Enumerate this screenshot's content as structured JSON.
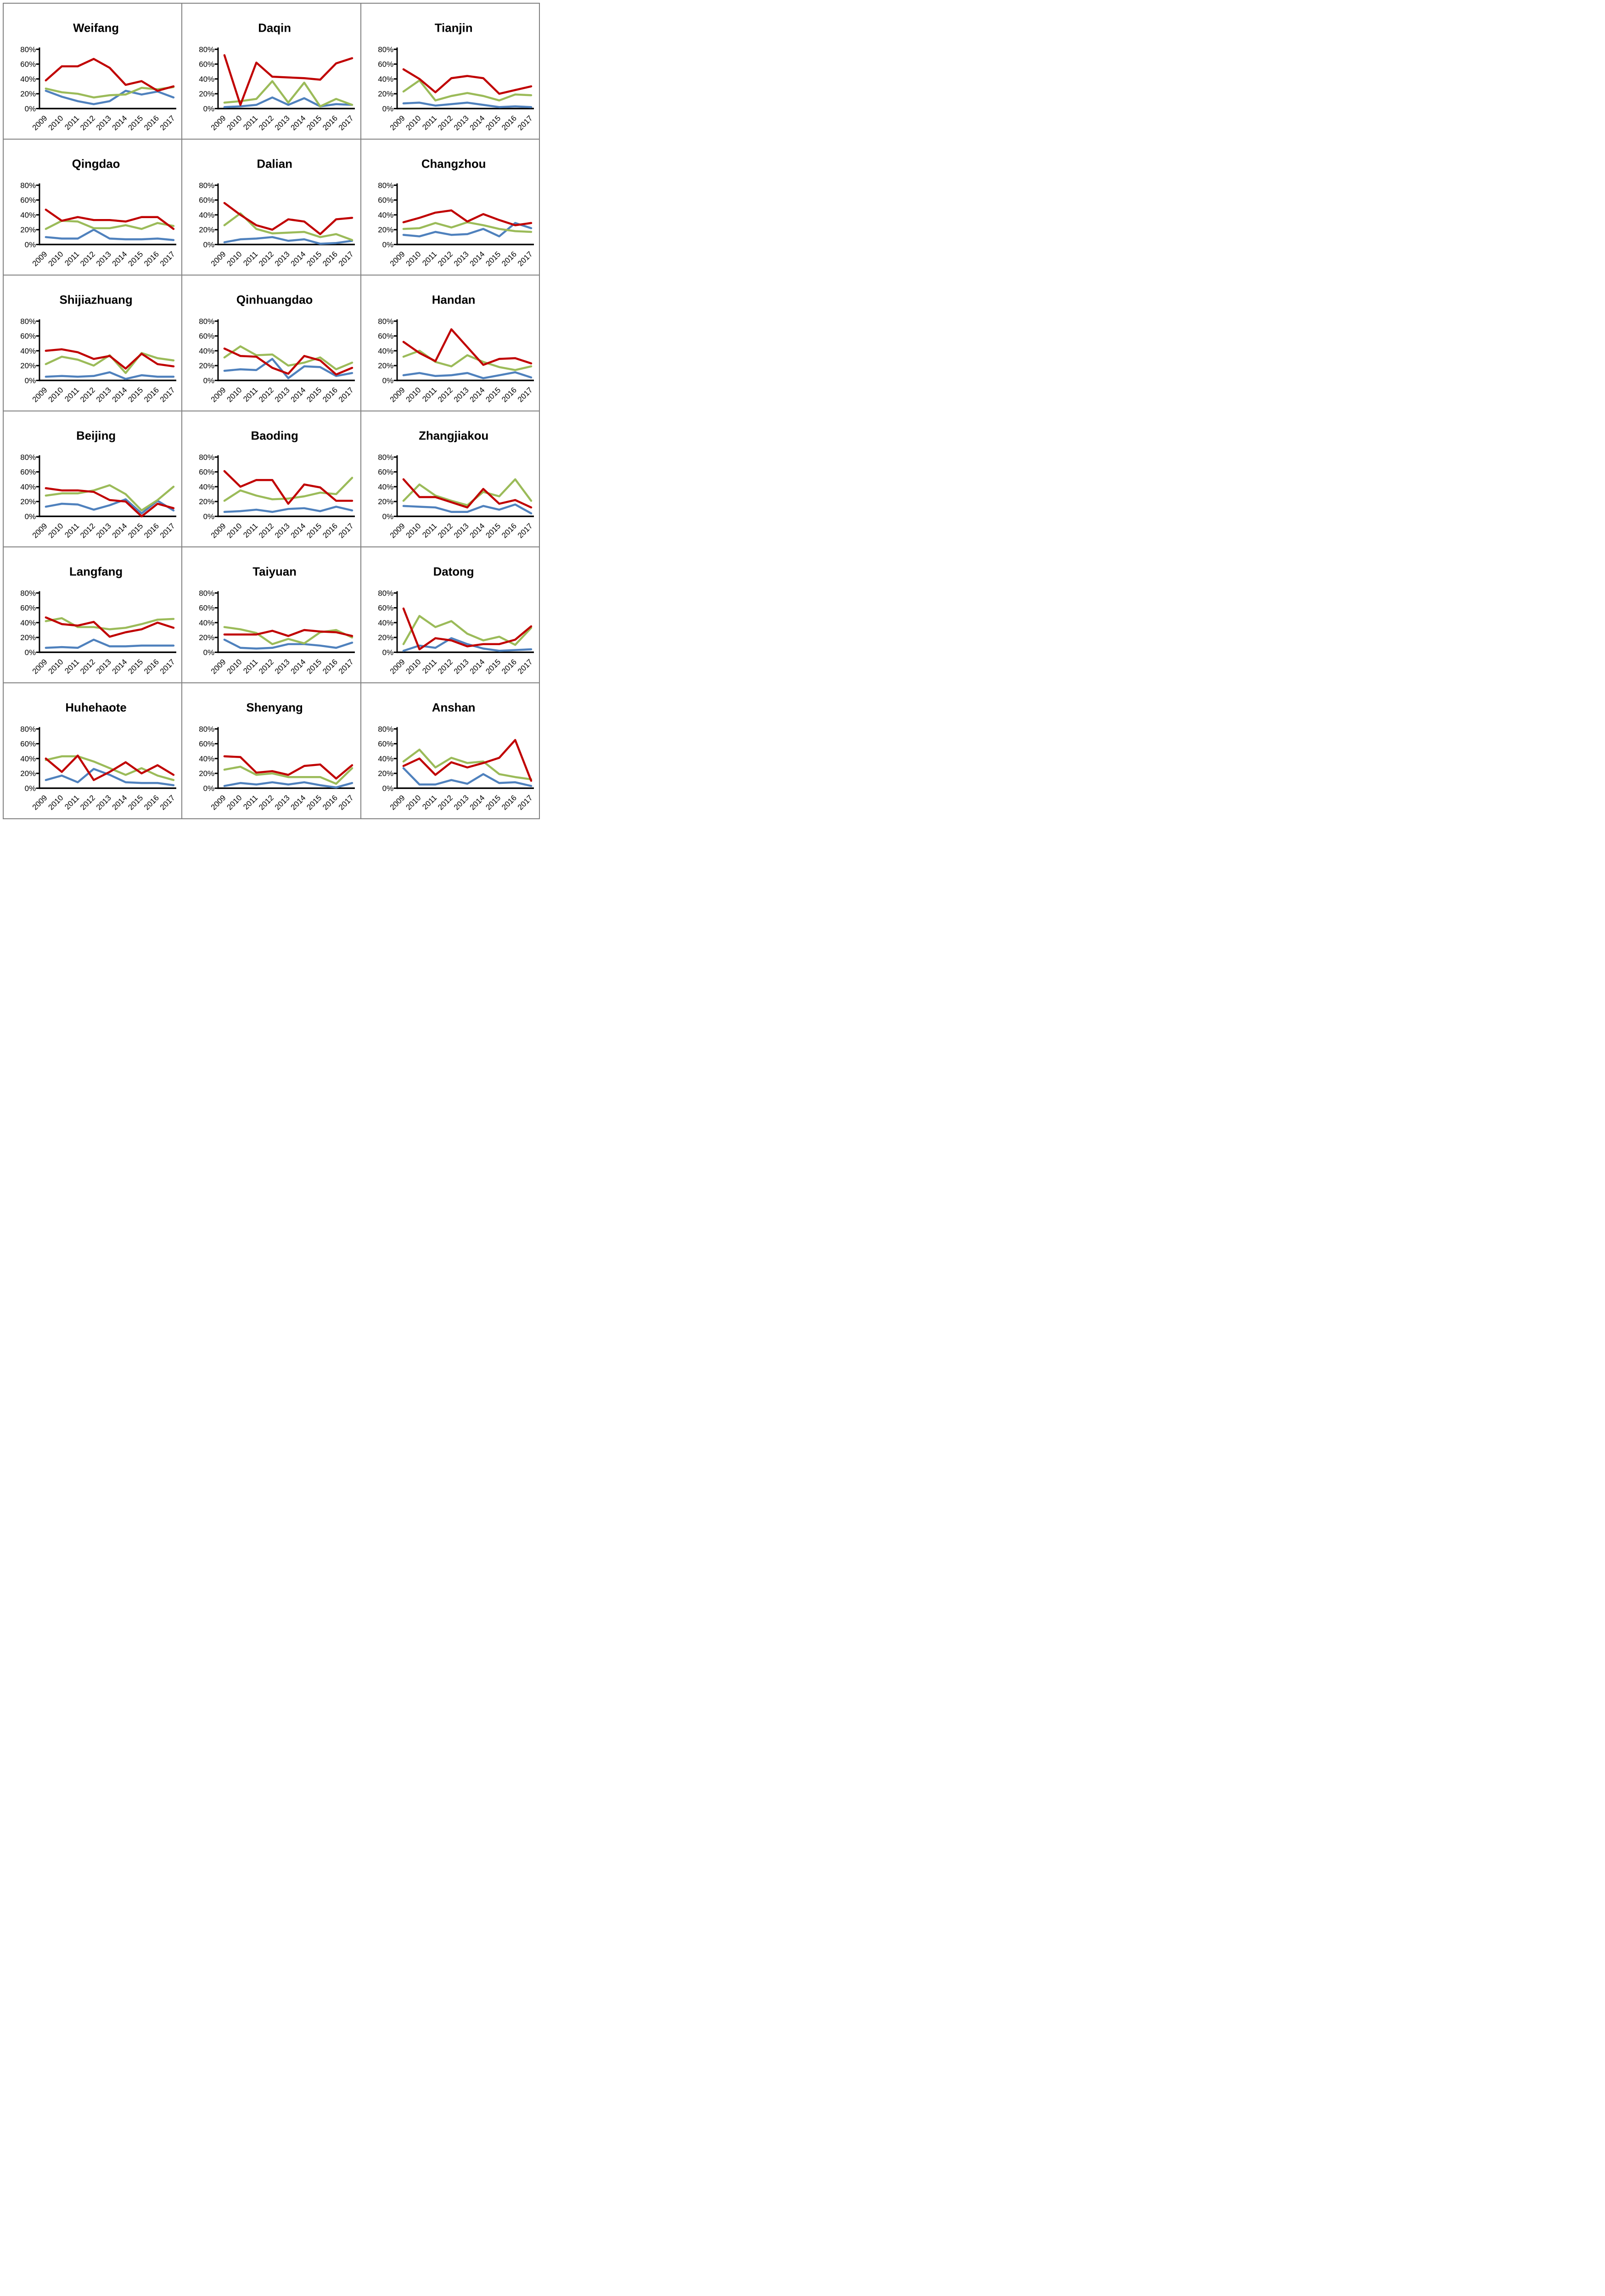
{
  "page": {
    "description": "Grid of 18 small multiple line charts of Chinese cities, share percentages 2009-2017"
  },
  "colors": {
    "red": "#C00000",
    "green": "#9BBB59",
    "blue": "#4F81BD",
    "panel_border": "#808080",
    "axis": "#000000"
  },
  "axis_common": {
    "categories": [
      "2009",
      "2010",
      "2011",
      "2012",
      "2013",
      "2014",
      "2015",
      "2016",
      "2017"
    ],
    "ylim": [
      0,
      80
    ],
    "y_tick_labels": [
      "0%",
      "20%",
      "40%",
      "60%",
      "80%"
    ],
    "grid": "off",
    "legend": "none"
  },
  "chart_data": [
    {
      "type": "line",
      "title": "Weifang",
      "categories": [
        "2009",
        "2010",
        "2011",
        "2012",
        "2013",
        "2014",
        "2015",
        "2016",
        "2017"
      ],
      "ylim": [
        0,
        80
      ],
      "series": [
        {
          "name": "blue",
          "color": "blue",
          "values": [
            24,
            16,
            10,
            6,
            10,
            24,
            19,
            23,
            15
          ]
        },
        {
          "name": "green",
          "color": "green",
          "values": [
            27,
            22,
            20,
            15,
            18,
            19,
            28,
            26,
            29
          ]
        },
        {
          "name": "red",
          "color": "red",
          "values": [
            38,
            57,
            57,
            67,
            55,
            32,
            37,
            24,
            30
          ]
        }
      ]
    },
    {
      "type": "line",
      "title": "Daqin",
      "categories": [
        "2009",
        "2010",
        "2011",
        "2012",
        "2013",
        "2014",
        "2015",
        "2016",
        "2017"
      ],
      "ylim": [
        0,
        80
      ],
      "series": [
        {
          "name": "blue",
          "color": "blue",
          "values": [
            2,
            3,
            5,
            15,
            5,
            14,
            3,
            6,
            5
          ]
        },
        {
          "name": "green",
          "color": "green",
          "values": [
            8,
            10,
            13,
            37,
            8,
            35,
            3,
            13,
            5
          ]
        },
        {
          "name": "red",
          "color": "red",
          "values": [
            72,
            5,
            62,
            43,
            42,
            41,
            39,
            61,
            68
          ]
        }
      ]
    },
    {
      "type": "line",
      "title": "Tianjin",
      "categories": [
        "2009",
        "2010",
        "2011",
        "2012",
        "2013",
        "2014",
        "2015",
        "2016",
        "2017"
      ],
      "ylim": [
        0,
        80
      ],
      "series": [
        {
          "name": "blue",
          "color": "blue",
          "values": [
            7,
            8,
            4,
            6,
            8,
            5,
            2,
            3,
            2
          ]
        },
        {
          "name": "green",
          "color": "green",
          "values": [
            23,
            38,
            11,
            17,
            21,
            17,
            11,
            19,
            18
          ]
        },
        {
          "name": "red",
          "color": "red",
          "values": [
            53,
            40,
            22,
            41,
            44,
            41,
            20,
            25,
            30
          ]
        }
      ]
    },
    {
      "type": "line",
      "title": "Qingdao",
      "categories": [
        "2009",
        "2010",
        "2011",
        "2012",
        "2013",
        "2014",
        "2015",
        "2016",
        "2017"
      ],
      "ylim": [
        0,
        80
      ],
      "series": [
        {
          "name": "blue",
          "color": "blue",
          "values": [
            10,
            8,
            8,
            20,
            8,
            7,
            7,
            8,
            6
          ]
        },
        {
          "name": "green",
          "color": "green",
          "values": [
            21,
            32,
            31,
            22,
            22,
            26,
            21,
            29,
            25
          ]
        },
        {
          "name": "red",
          "color": "red",
          "values": [
            47,
            32,
            37,
            33,
            33,
            31,
            37,
            37,
            21
          ]
        }
      ]
    },
    {
      "type": "line",
      "title": "Dalian",
      "categories": [
        "2009",
        "2010",
        "2011",
        "2012",
        "2013",
        "2014",
        "2015",
        "2016",
        "2017"
      ],
      "ylim": [
        0,
        80
      ],
      "series": [
        {
          "name": "blue",
          "color": "blue",
          "values": [
            3,
            7,
            8,
            10,
            5,
            7,
            1,
            2,
            5
          ]
        },
        {
          "name": "green",
          "color": "green",
          "values": [
            26,
            42,
            21,
            15,
            16,
            17,
            10,
            14,
            6
          ]
        },
        {
          "name": "red",
          "color": "red",
          "values": [
            56,
            40,
            26,
            20,
            34,
            31,
            14,
            34,
            36
          ]
        }
      ]
    },
    {
      "type": "line",
      "title": "Changzhou",
      "categories": [
        "2009",
        "2010",
        "2011",
        "2012",
        "2013",
        "2014",
        "2015",
        "2016",
        "2017"
      ],
      "ylim": [
        0,
        80
      ],
      "series": [
        {
          "name": "blue",
          "color": "blue",
          "values": [
            13,
            11,
            17,
            13,
            14,
            21,
            11,
            29,
            22
          ]
        },
        {
          "name": "green",
          "color": "green",
          "values": [
            21,
            22,
            29,
            23,
            30,
            26,
            21,
            18,
            17
          ]
        },
        {
          "name": "red",
          "color": "red",
          "values": [
            30,
            36,
            43,
            46,
            31,
            41,
            33,
            26,
            29
          ]
        }
      ]
    },
    {
      "type": "line",
      "title": "Shijiazhuang",
      "categories": [
        "2009",
        "2010",
        "2011",
        "2012",
        "2013",
        "2014",
        "2015",
        "2016",
        "2017"
      ],
      "ylim": [
        0,
        80
      ],
      "series": [
        {
          "name": "blue",
          "color": "blue",
          "values": [
            5,
            6,
            5,
            6,
            11,
            2,
            7,
            5,
            5
          ]
        },
        {
          "name": "green",
          "color": "green",
          "values": [
            22,
            32,
            28,
            20,
            34,
            10,
            37,
            30,
            27
          ]
        },
        {
          "name": "red",
          "color": "red",
          "values": [
            40,
            42,
            38,
            29,
            33,
            16,
            36,
            22,
            19
          ]
        }
      ]
    },
    {
      "type": "line",
      "title": "Qinhuangdao",
      "categories": [
        "2009",
        "2010",
        "2011",
        "2012",
        "2013",
        "2014",
        "2015",
        "2016",
        "2017"
      ],
      "ylim": [
        0,
        80
      ],
      "series": [
        {
          "name": "blue",
          "color": "blue",
          "values": [
            13,
            15,
            14,
            29,
            3,
            19,
            18,
            6,
            10
          ]
        },
        {
          "name": "green",
          "color": "green",
          "values": [
            31,
            46,
            34,
            35,
            20,
            24,
            31,
            15,
            24
          ]
        },
        {
          "name": "red",
          "color": "red",
          "values": [
            43,
            33,
            32,
            17,
            9,
            33,
            27,
            8,
            17
          ]
        }
      ]
    },
    {
      "type": "line",
      "title": "Handan",
      "categories": [
        "2009",
        "2010",
        "2011",
        "2012",
        "2013",
        "2014",
        "2015",
        "2016",
        "2017"
      ],
      "ylim": [
        0,
        80
      ],
      "series": [
        {
          "name": "blue",
          "color": "blue",
          "values": [
            7,
            10,
            6,
            7,
            10,
            3,
            7,
            11,
            4
          ]
        },
        {
          "name": "green",
          "color": "green",
          "values": [
            32,
            40,
            25,
            19,
            34,
            25,
            18,
            14,
            19
          ]
        },
        {
          "name": "red",
          "color": "red",
          "values": [
            52,
            37,
            26,
            69,
            45,
            21,
            29,
            30,
            23
          ]
        }
      ]
    },
    {
      "type": "line",
      "title": "Beijing",
      "categories": [
        "2009",
        "2010",
        "2011",
        "2012",
        "2013",
        "2014",
        "2015",
        "2016",
        "2017"
      ],
      "ylim": [
        0,
        80
      ],
      "series": [
        {
          "name": "blue",
          "color": "blue",
          "values": [
            13,
            17,
            16,
            9,
            15,
            23,
            4,
            21,
            8
          ]
        },
        {
          "name": "green",
          "color": "green",
          "values": [
            28,
            31,
            31,
            35,
            42,
            30,
            8,
            22,
            40
          ]
        },
        {
          "name": "red",
          "color": "red",
          "values": [
            38,
            35,
            35,
            33,
            22,
            20,
            0,
            17,
            11
          ]
        }
      ]
    },
    {
      "type": "line",
      "title": "Baoding",
      "categories": [
        "2009",
        "2010",
        "2011",
        "2012",
        "2013",
        "2014",
        "2015",
        "2016",
        "2017"
      ],
      "ylim": [
        0,
        80
      ],
      "series": [
        {
          "name": "blue",
          "color": "blue",
          "values": [
            6,
            7,
            9,
            6,
            10,
            11,
            7,
            13,
            8
          ]
        },
        {
          "name": "green",
          "color": "green",
          "values": [
            21,
            35,
            28,
            23,
            24,
            27,
            32,
            30,
            52
          ]
        },
        {
          "name": "red",
          "color": "red",
          "values": [
            61,
            40,
            49,
            49,
            17,
            43,
            39,
            21,
            21
          ]
        }
      ]
    },
    {
      "type": "line",
      "title": "Zhangjiakou",
      "categories": [
        "2009",
        "2010",
        "2011",
        "2012",
        "2013",
        "2014",
        "2015",
        "2016",
        "2017"
      ],
      "ylim": [
        0,
        80
      ],
      "series": [
        {
          "name": "blue",
          "color": "blue",
          "values": [
            14,
            13,
            12,
            6,
            6,
            14,
            9,
            16,
            4
          ]
        },
        {
          "name": "green",
          "color": "green",
          "values": [
            21,
            43,
            28,
            21,
            15,
            33,
            27,
            50,
            21
          ]
        },
        {
          "name": "red",
          "color": "red",
          "values": [
            50,
            26,
            26,
            19,
            12,
            37,
            17,
            22,
            12
          ]
        }
      ]
    },
    {
      "type": "line",
      "title": "Langfang",
      "categories": [
        "2009",
        "2010",
        "2011",
        "2012",
        "2013",
        "2014",
        "2015",
        "2016",
        "2017"
      ],
      "ylim": [
        0,
        80
      ],
      "series": [
        {
          "name": "blue",
          "color": "blue",
          "values": [
            6,
            7,
            6,
            17,
            8,
            8,
            9,
            9,
            9
          ]
        },
        {
          "name": "green",
          "color": "green",
          "values": [
            42,
            46,
            34,
            34,
            31,
            33,
            38,
            44,
            45
          ]
        },
        {
          "name": "red",
          "color": "red",
          "values": [
            47,
            38,
            36,
            41,
            21,
            27,
            31,
            40,
            33
          ]
        }
      ]
    },
    {
      "type": "line",
      "title": "Taiyuan",
      "categories": [
        "2009",
        "2010",
        "2011",
        "2012",
        "2013",
        "2014",
        "2015",
        "2016",
        "2017"
      ],
      "ylim": [
        0,
        80
      ],
      "series": [
        {
          "name": "blue",
          "color": "blue",
          "values": [
            17,
            6,
            5,
            6,
            11,
            11,
            9,
            6,
            13
          ]
        },
        {
          "name": "green",
          "color": "green",
          "values": [
            34,
            31,
            26,
            11,
            18,
            12,
            27,
            30,
            20
          ]
        },
        {
          "name": "red",
          "color": "red",
          "values": [
            24,
            24,
            24,
            29,
            22,
            30,
            28,
            27,
            22
          ]
        }
      ]
    },
    {
      "type": "line",
      "title": "Datong",
      "categories": [
        "2009",
        "2010",
        "2011",
        "2012",
        "2013",
        "2014",
        "2015",
        "2016",
        "2017"
      ],
      "ylim": [
        0,
        80
      ],
      "series": [
        {
          "name": "blue",
          "color": "blue",
          "values": [
            2,
            9,
            6,
            19,
            11,
            5,
            2,
            3,
            4
          ]
        },
        {
          "name": "green",
          "color": "green",
          "values": [
            11,
            49,
            34,
            42,
            25,
            16,
            21,
            10,
            33
          ]
        },
        {
          "name": "red",
          "color": "red",
          "values": [
            59,
            4,
            19,
            16,
            8,
            11,
            11,
            17,
            35
          ]
        }
      ]
    },
    {
      "type": "line",
      "title": "Huhehaote",
      "categories": [
        "2009",
        "2010",
        "2011",
        "2012",
        "2013",
        "2014",
        "2015",
        "2016",
        "2017"
      ],
      "ylim": [
        0,
        80
      ],
      "series": [
        {
          "name": "blue",
          "color": "blue",
          "values": [
            11,
            17,
            8,
            26,
            18,
            8,
            7,
            7,
            4
          ]
        },
        {
          "name": "green",
          "color": "green",
          "values": [
            38,
            43,
            43,
            36,
            27,
            18,
            27,
            17,
            11
          ]
        },
        {
          "name": "red",
          "color": "red",
          "values": [
            40,
            22,
            44,
            11,
            22,
            35,
            20,
            31,
            18
          ]
        }
      ]
    },
    {
      "type": "line",
      "title": "Shenyang",
      "categories": [
        "2009",
        "2010",
        "2011",
        "2012",
        "2013",
        "2014",
        "2015",
        "2016",
        "2017"
      ],
      "ylim": [
        0,
        80
      ],
      "series": [
        {
          "name": "blue",
          "color": "blue",
          "values": [
            3,
            7,
            5,
            8,
            5,
            8,
            4,
            1,
            7
          ]
        },
        {
          "name": "green",
          "color": "green",
          "values": [
            25,
            29,
            18,
            20,
            15,
            15,
            15,
            6,
            27
          ]
        },
        {
          "name": "red",
          "color": "red",
          "values": [
            43,
            42,
            21,
            23,
            18,
            30,
            32,
            13,
            31
          ]
        }
      ]
    },
    {
      "type": "line",
      "title": "Anshan",
      "categories": [
        "2009",
        "2010",
        "2011",
        "2012",
        "2013",
        "2014",
        "2015",
        "2016",
        "2017"
      ],
      "ylim": [
        0,
        80
      ],
      "series": [
        {
          "name": "blue",
          "color": "blue",
          "values": [
            27,
            5,
            5,
            11,
            6,
            19,
            7,
            8,
            3
          ]
        },
        {
          "name": "green",
          "color": "green",
          "values": [
            36,
            52,
            28,
            41,
            34,
            36,
            19,
            15,
            12
          ]
        },
        {
          "name": "red",
          "color": "red",
          "values": [
            30,
            40,
            18,
            35,
            28,
            34,
            41,
            65,
            10
          ]
        }
      ]
    }
  ]
}
